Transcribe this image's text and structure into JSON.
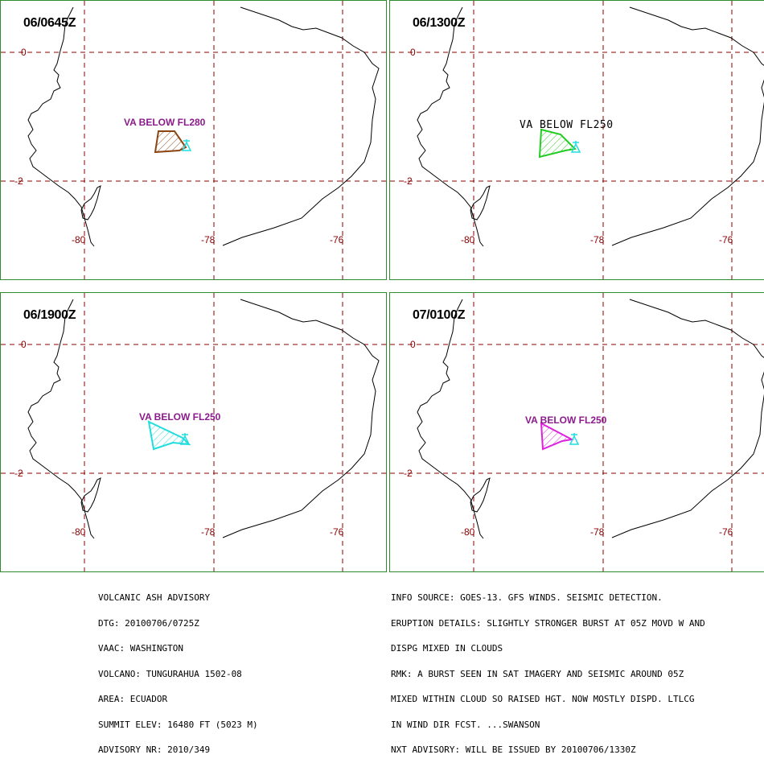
{
  "panels": [
    {
      "time": "06/0645Z",
      "label": "VA BELOW FL280",
      "color": "#8b4513"
    },
    {
      "time": "06/1300Z",
      "label": "VA BELOW FL250",
      "color": "#22cc22"
    },
    {
      "time": "06/1900Z",
      "label": "VA BELOW FL250",
      "color": "#22dddd"
    },
    {
      "time": "07/0100Z",
      "label": "VA BELOW FL250",
      "color": "#dd22dd"
    }
  ],
  "grid": {
    "lat_labels": [
      "0",
      "-2"
    ],
    "lon_labels": [
      "-80",
      "-78",
      "-76"
    ],
    "line_color": "#8b0000"
  },
  "volcano_color": "#22dddd",
  "advisory_left": [
    "VOLCANIC ASH ADVISORY",
    "DTG: 20100706/0725Z",
    "VAAC: WASHINGTON",
    "VOLCANO: TUNGURAHUA 1502-08",
    "AREA: ECUADOR",
    "SUMMIT ELEV: 16480 FT (5023 M)",
    "ADVISORY NR: 2010/349"
  ],
  "advisory_right": [
    "INFO SOURCE: GOES-13. GFS WINDS. SEISMIC DETECTION.",
    "ERUPTION DETAILS: SLIGHTLY STRONGER BURST AT 05Z MOVD W AND",
    "DISPG MIXED IN CLOUDS",
    "RMK: A BURST SEEN IN SAT IMAGERY AND SEISMIC AROUND 05Z",
    "MIXED WITHIN CLOUD SO RAISED HGT. NOW MOSTLY DISPD. LTLCG",
    "IN WIND DIR FCST. ...SWANSON",
    "NXT ADVISORY: WILL BE ISSUED BY 20100706/1330Z"
  ]
}
